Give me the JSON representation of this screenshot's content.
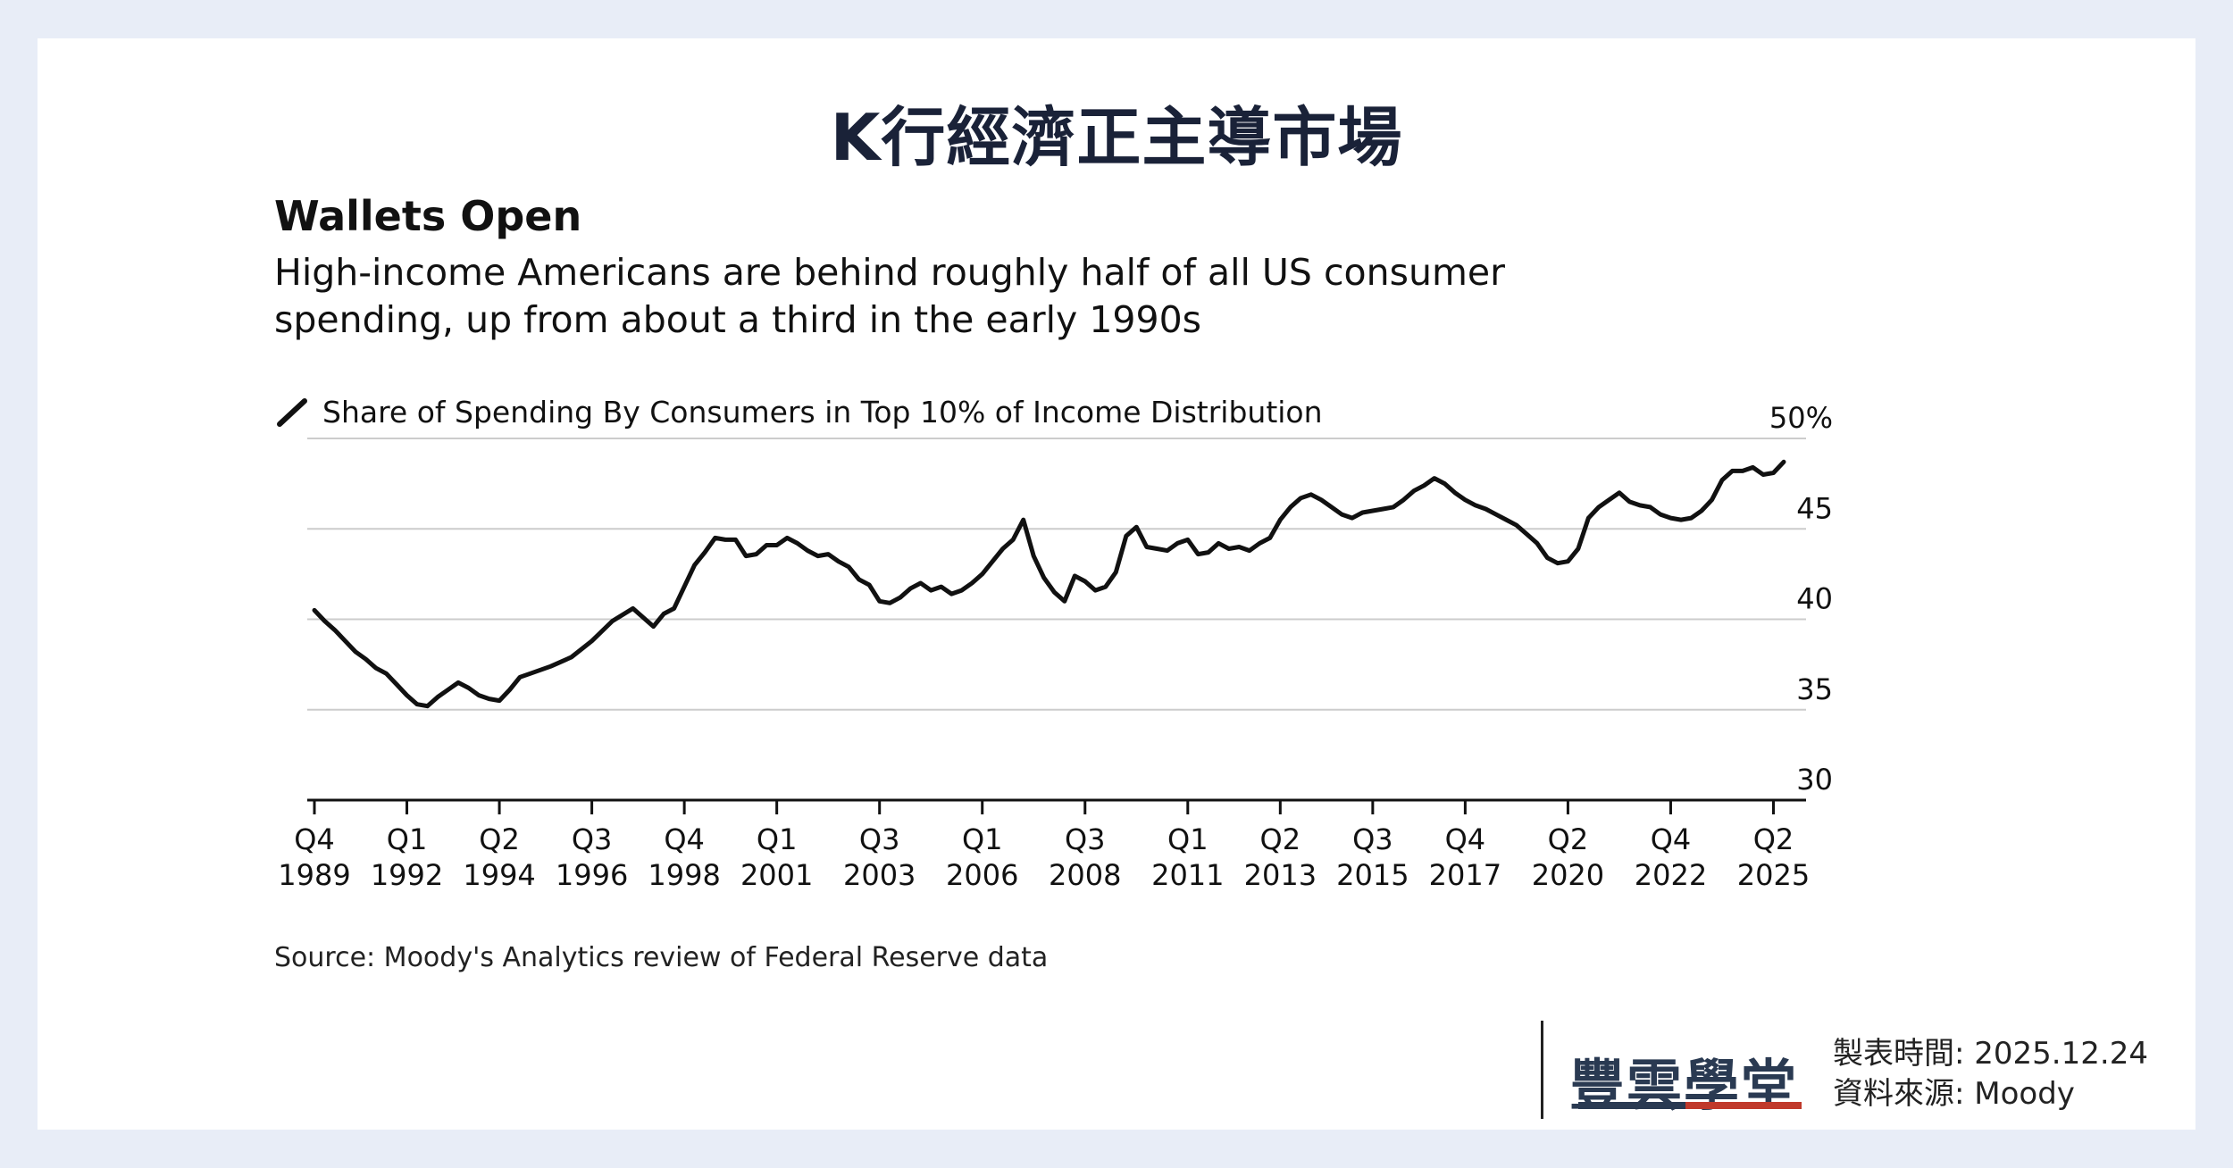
{
  "page": {
    "main_title": "K行經濟正主導市場",
    "source": "Source: Moody's Analytics review of Federal Reserve data",
    "brand": "豐雲學堂",
    "meta_date_label": "製表時間:",
    "meta_date_value": "2025.12.24",
    "meta_source_label": "資料來源:",
    "meta_source_value": "Moody"
  },
  "colors": {
    "background": "#e8edf7",
    "line": "#111111",
    "grid": "#cccccc",
    "brand_red": "#c0392b",
    "brand_dark": "#2a3a52"
  },
  "chart_data": {
    "type": "line",
    "title": "Wallets Open",
    "subtitle_lines": [
      "High-income Americans are behind roughly half of all US consumer",
      "spending, up from about a third in the early 1990s"
    ],
    "series": [
      {
        "name": "Share of Spending By Consumers in Top 10% of Income Distribution",
        "x": [
          1989.75,
          1990.0,
          1990.25,
          1990.5,
          1990.75,
          1991.0,
          1991.25,
          1991.5,
          1991.75,
          1992.0,
          1992.25,
          1992.5,
          1992.75,
          1993.0,
          1993.25,
          1993.5,
          1993.75,
          1994.0,
          1994.25,
          1994.5,
          1994.75,
          1995.0,
          1995.5,
          1996.0,
          1996.5,
          1997.0,
          1997.5,
          1998.0,
          1998.25,
          1998.5,
          1998.75,
          1999.0,
          1999.25,
          1999.5,
          1999.75,
          2000.0,
          2000.25,
          2000.5,
          2000.75,
          2001.0,
          2001.25,
          2001.5,
          2001.75,
          2002.0,
          2002.25,
          2002.5,
          2002.75,
          2003.0,
          2003.25,
          2003.5,
          2003.75,
          2004.0,
          2004.25,
          2004.5,
          2004.75,
          2005.0,
          2005.25,
          2005.5,
          2005.75,
          2006.0,
          2006.25,
          2006.5,
          2006.75,
          2007.0,
          2007.25,
          2007.5,
          2007.75,
          2008.0,
          2008.25,
          2008.5,
          2008.75,
          2009.0,
          2009.25,
          2009.5,
          2009.75,
          2010.0,
          2010.25,
          2010.5,
          2010.75,
          2011.0,
          2011.25,
          2011.5,
          2011.75,
          2012.0,
          2012.25,
          2012.5,
          2012.75,
          2013.0,
          2013.25,
          2013.5,
          2013.75,
          2014.0,
          2014.25,
          2014.5,
          2014.75,
          2015.0,
          2015.25,
          2015.5,
          2015.75,
          2016.0,
          2016.25,
          2016.5,
          2016.75,
          2017.0,
          2017.25,
          2017.5,
          2017.75,
          2018.0,
          2018.25,
          2018.5,
          2018.75,
          2019.0,
          2019.25,
          2019.5,
          2019.75,
          2020.0,
          2020.25,
          2020.5,
          2020.75,
          2021.0,
          2021.25,
          2021.5,
          2021.75,
          2022.0,
          2022.25,
          2022.5,
          2022.75,
          2023.0,
          2023.25,
          2023.5,
          2023.75,
          2024.0,
          2024.25,
          2024.5,
          2024.75,
          2025.0,
          2025.25,
          2025.5
        ],
        "values": [
          40.5,
          39.9,
          39.4,
          38.8,
          38.2,
          37.8,
          37.3,
          37.0,
          36.4,
          35.8,
          35.3,
          35.2,
          35.7,
          36.1,
          36.5,
          36.2,
          35.8,
          35.6,
          35.5,
          36.1,
          36.8,
          37.0,
          37.4,
          37.9,
          38.8,
          39.9,
          40.6,
          39.6,
          40.3,
          40.6,
          41.8,
          43.0,
          43.7,
          44.5,
          44.4,
          44.4,
          43.5,
          43.6,
          44.1,
          44.1,
          44.5,
          44.2,
          43.8,
          43.5,
          43.6,
          43.2,
          42.9,
          42.2,
          41.9,
          41.0,
          40.9,
          41.2,
          41.7,
          42.0,
          41.6,
          41.8,
          41.4,
          41.6,
          42.0,
          42.5,
          43.2,
          43.9,
          44.4,
          45.5,
          43.5,
          42.3,
          41.5,
          41.0,
          42.4,
          42.1,
          41.6,
          41.8,
          42.6,
          44.6,
          45.1,
          44.0,
          43.9,
          43.8,
          44.2,
          44.4,
          43.6,
          43.7,
          44.2,
          43.9,
          44.0,
          43.8,
          44.2,
          44.5,
          45.5,
          46.2,
          46.7,
          46.9,
          46.6,
          46.2,
          45.8,
          45.6,
          45.9,
          46.0,
          46.1,
          46.2,
          46.6,
          47.1,
          47.4,
          47.8,
          47.5,
          47.0,
          46.6,
          46.3,
          46.1,
          45.8,
          45.5,
          45.2,
          44.7,
          44.2,
          43.4,
          43.1,
          43.2,
          43.9,
          45.6,
          46.2,
          46.6,
          47.0,
          46.5,
          46.3,
          46.2,
          45.8,
          45.6,
          45.5,
          45.6,
          46.0,
          46.6,
          47.7,
          48.2,
          48.2,
          48.4,
          48.0,
          48.1,
          48.7
        ]
      }
    ],
    "x_ticks": [
      {
        "value": 1989.75,
        "top": "Q4",
        "bottom": "1989"
      },
      {
        "value": 1992.0,
        "top": "Q1",
        "bottom": "1992"
      },
      {
        "value": 1994.25,
        "top": "Q2",
        "bottom": "1994"
      },
      {
        "value": 1996.5,
        "top": "Q3",
        "bottom": "1996"
      },
      {
        "value": 1998.75,
        "top": "Q4",
        "bottom": "1998"
      },
      {
        "value": 2001.0,
        "top": "Q1",
        "bottom": "2001"
      },
      {
        "value": 2003.5,
        "top": "Q3",
        "bottom": "2003"
      },
      {
        "value": 2006.0,
        "top": "Q1",
        "bottom": "2006"
      },
      {
        "value": 2008.5,
        "top": "Q3",
        "bottom": "2008"
      },
      {
        "value": 2011.0,
        "top": "Q1",
        "bottom": "2011"
      },
      {
        "value": 2013.25,
        "top": "Q2",
        "bottom": "2013"
      },
      {
        "value": 2015.5,
        "top": "Q3",
        "bottom": "2015"
      },
      {
        "value": 2017.75,
        "top": "Q4",
        "bottom": "2017"
      },
      {
        "value": 2020.25,
        "top": "Q2",
        "bottom": "2020"
      },
      {
        "value": 2022.75,
        "top": "Q4",
        "bottom": "2022"
      },
      {
        "value": 2025.25,
        "top": "Q2",
        "bottom": "2025"
      }
    ],
    "y_ticks": [
      {
        "value": 30,
        "label": "30"
      },
      {
        "value": 35,
        "label": "35"
      },
      {
        "value": 40,
        "label": "40"
      },
      {
        "value": 45,
        "label": "45"
      },
      {
        "value": 50,
        "label": "50%"
      }
    ],
    "xlim": [
      1989.75,
      2025.5
    ],
    "ylim": [
      30,
      50
    ],
    "grid": true,
    "legend": "top-left"
  }
}
